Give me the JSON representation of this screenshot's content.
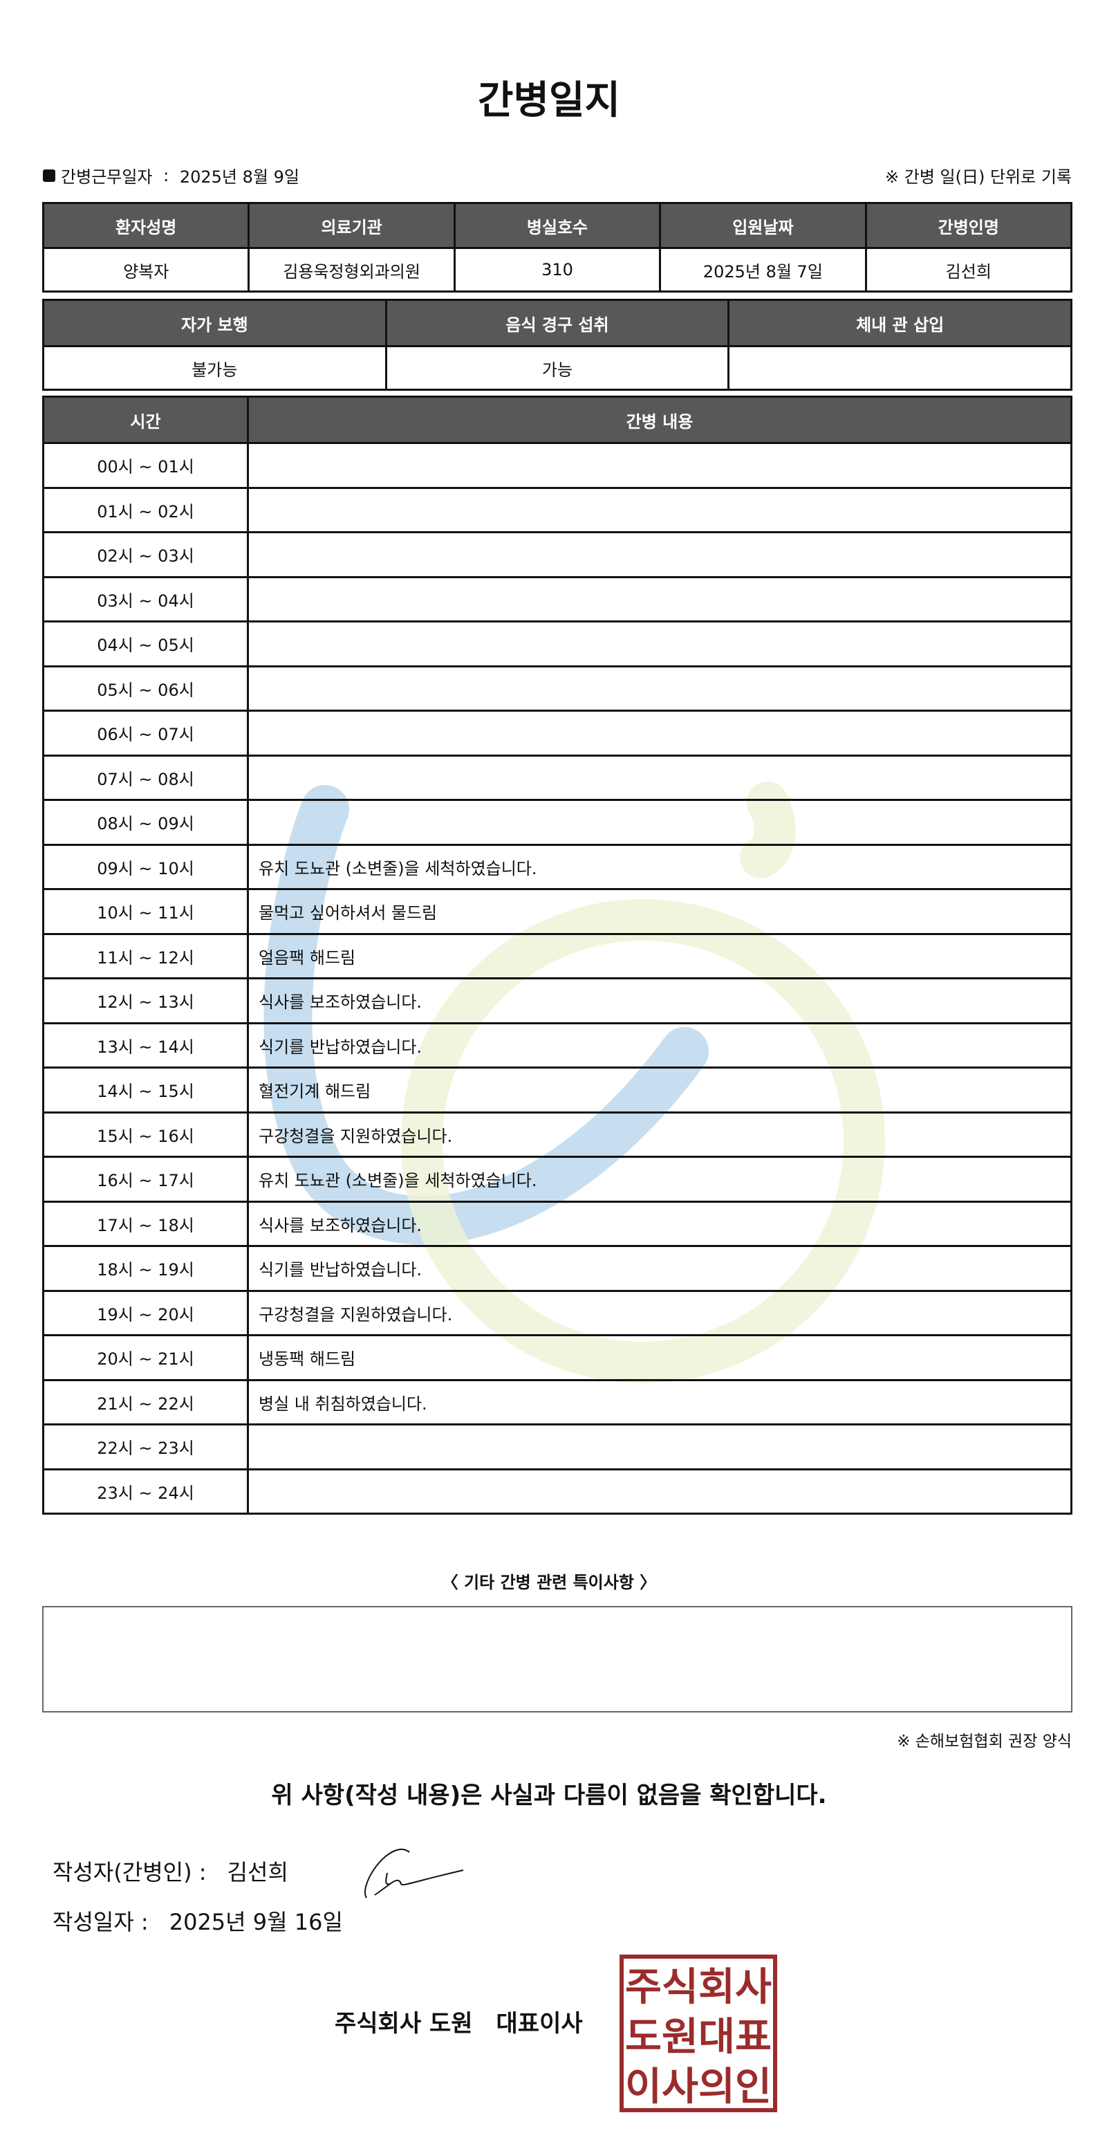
{
  "title": "간병일지",
  "meta": {
    "work_date_label": "간병근무일자",
    "work_date": "2025년 8월 9일",
    "unit_note": "※ 간병 일(日) 단위로 기록"
  },
  "patient_table": {
    "headers": [
      "환자성명",
      "의료기관",
      "병실호수",
      "입원날짜",
      "간병인명"
    ],
    "values": [
      "양복자",
      "김용욱정형외과의원",
      "310",
      "2025년 8월 7일",
      "김선희"
    ]
  },
  "status_table": {
    "headers": [
      "자가 보행",
      "음식 경구 섭취",
      "체내 관 삽입"
    ],
    "values": [
      "불가능",
      "가능",
      ""
    ]
  },
  "log_table": {
    "headers": [
      "시간",
      "간병 내용"
    ],
    "rows": [
      {
        "time": "00시 ~ 01시",
        "content": ""
      },
      {
        "time": "01시 ~ 02시",
        "content": ""
      },
      {
        "time": "02시 ~ 03시",
        "content": ""
      },
      {
        "time": "03시 ~ 04시",
        "content": ""
      },
      {
        "time": "04시 ~ 05시",
        "content": ""
      },
      {
        "time": "05시 ~ 06시",
        "content": ""
      },
      {
        "time": "06시 ~ 07시",
        "content": ""
      },
      {
        "time": "07시 ~ 08시",
        "content": ""
      },
      {
        "time": "08시 ~ 09시",
        "content": ""
      },
      {
        "time": "09시 ~ 10시",
        "content": "유치 도뇨관 (소변줄)을 세척하였습니다."
      },
      {
        "time": "10시 ~ 11시",
        "content": "물먹고 싶어하셔서 물드림"
      },
      {
        "time": "11시 ~ 12시",
        "content": "얼음팩 해드림"
      },
      {
        "time": "12시 ~ 13시",
        "content": "식사를 보조하였습니다."
      },
      {
        "time": "13시 ~ 14시",
        "content": "식기를 반납하였습니다."
      },
      {
        "time": "14시 ~ 15시",
        "content": "혈전기계 해드림"
      },
      {
        "time": "15시 ~ 16시",
        "content": "구강청결을 지원하였습니다."
      },
      {
        "time": "16시 ~ 17시",
        "content": "유치 도뇨관 (소변줄)을 세척하였습니다."
      },
      {
        "time": "17시 ~ 18시",
        "content": "식사를 보조하였습니다."
      },
      {
        "time": "18시 ~ 19시",
        "content": "식기를 반납하였습니다."
      },
      {
        "time": "19시 ~ 20시",
        "content": "구강청결을 지원하였습니다."
      },
      {
        "time": "20시 ~ 21시",
        "content": "냉동팩 해드림"
      },
      {
        "time": "21시 ~ 22시",
        "content": "병실 내 취침하였습니다."
      },
      {
        "time": "22시 ~ 23시",
        "content": ""
      },
      {
        "time": "23시 ~ 24시",
        "content": ""
      }
    ]
  },
  "notes": {
    "title": "〈 기타 간병 관련 특이사항 〉",
    "content": ""
  },
  "standard_note": "※ 손해보험협회 권장 양식",
  "confirmation": "위 사항(작성 내용)은 사실과 다름이 없음을 확인합니다.",
  "writer": {
    "label": "작성자(간병인) :",
    "name": "김선희"
  },
  "written_date": {
    "label": "작성일자 :",
    "value": "2025년 9월 16일"
  },
  "company": {
    "name": "주식회사 도원",
    "title": "대표이사"
  },
  "stamp": {
    "lines": [
      "주식회사",
      "도원대표",
      "이사의인"
    ],
    "color": "#9b2c2c"
  },
  "colors": {
    "header_bg": "#585858",
    "watermark_blue": "#bcd8ec",
    "watermark_green": "#eef3d4"
  }
}
